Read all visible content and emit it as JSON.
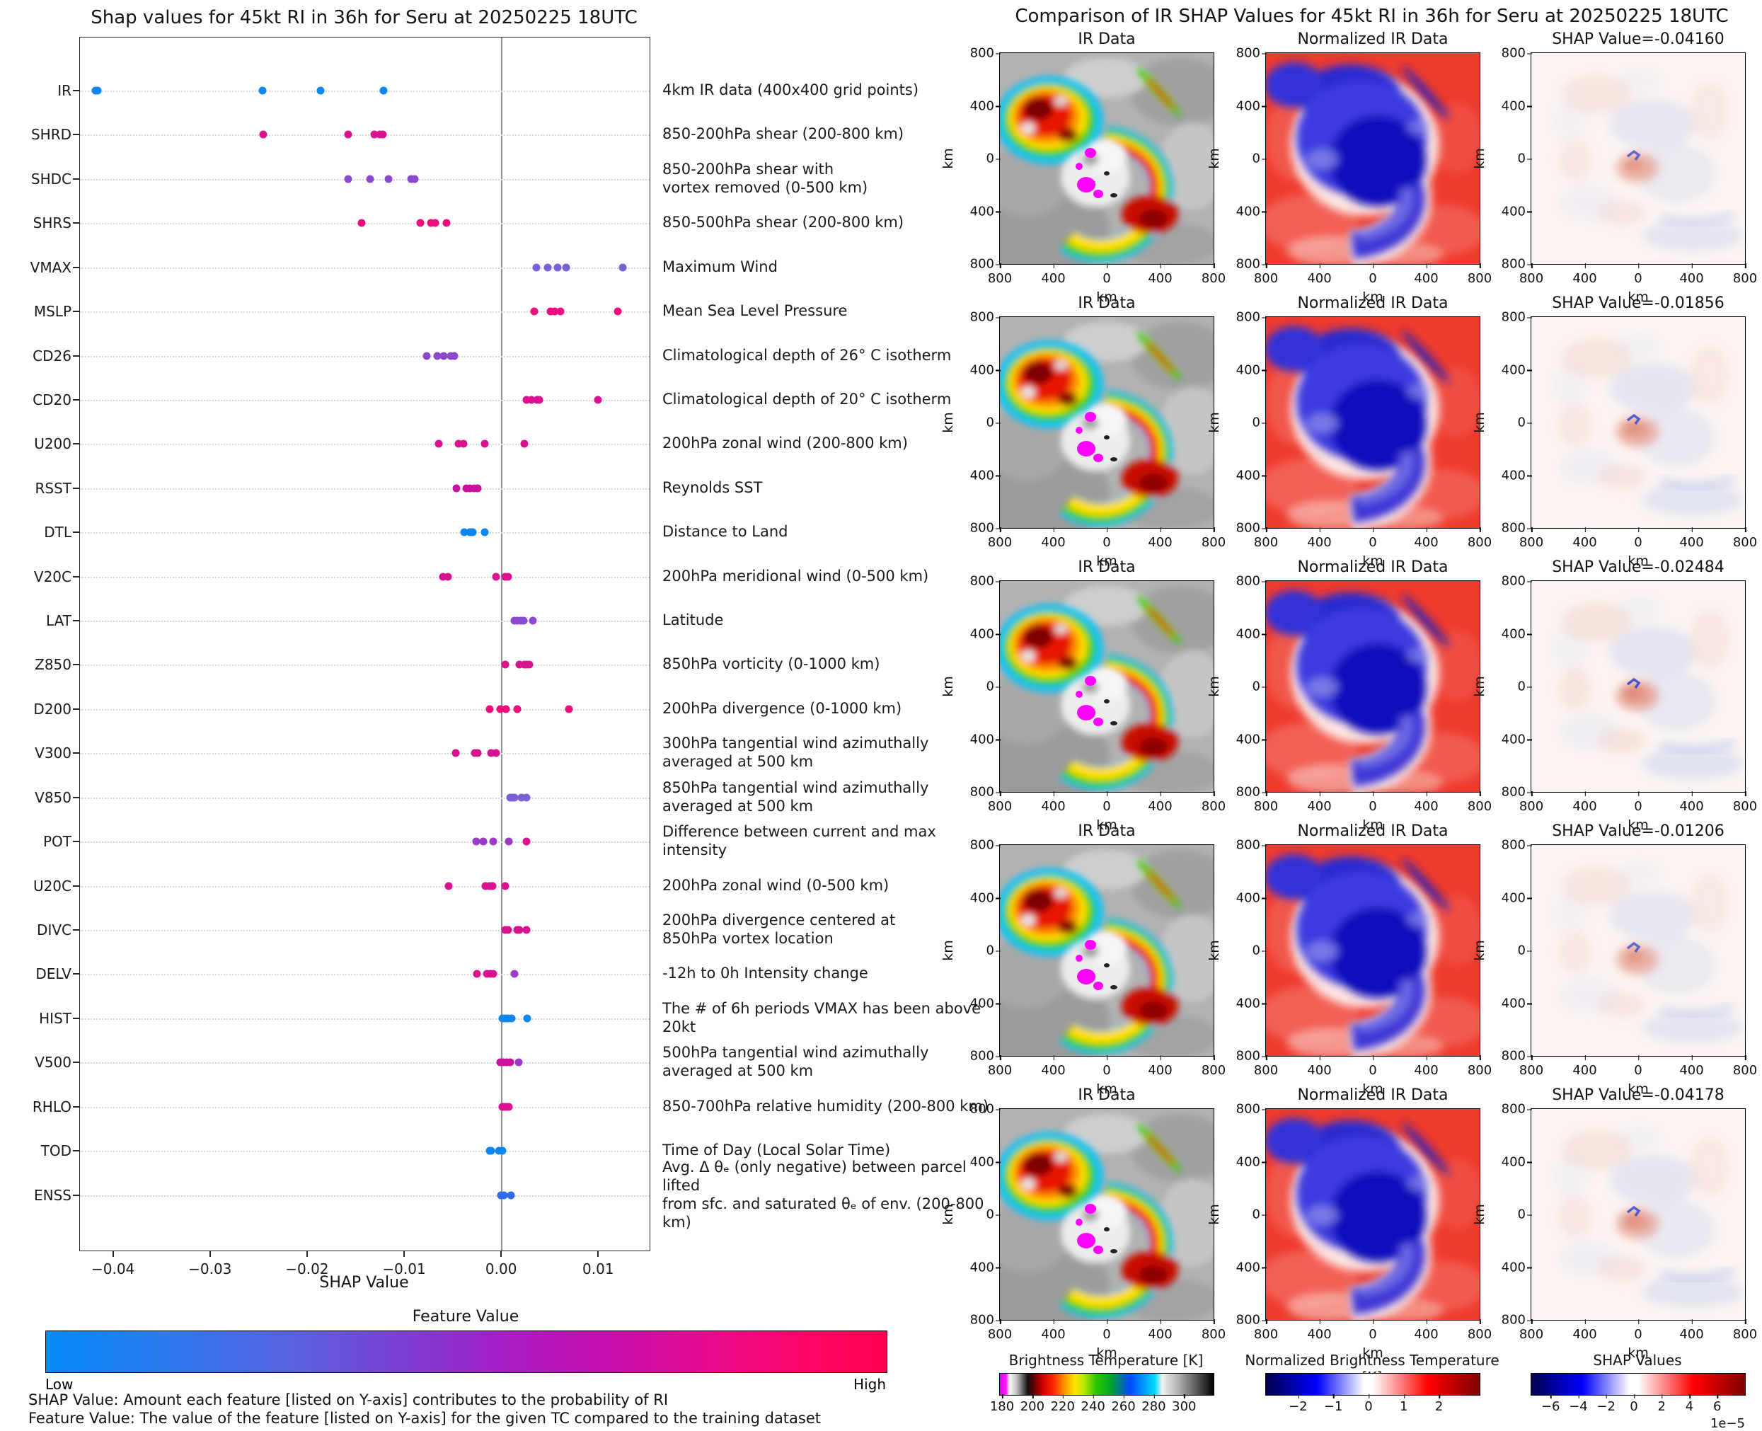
{
  "left_chart": {
    "title": "Shap values for 45kt RI in 36h for Seru at 20250225 18UTC",
    "xlabel": "SHAP Value",
    "colorbar": {
      "title": "Feature Value",
      "low_label": "Low",
      "high_label": "High",
      "low_color": "#058bf7",
      "high_color": "#ff0050"
    },
    "footnotes": [
      "SHAP Value: Amount each feature [listed on Y-axis] contributes to the probability of RI",
      "Feature Value: The value of the feature [listed on Y-axis] for the given TC compared to the training dataset"
    ]
  },
  "right_grid": {
    "title": "Comparison of IR SHAP Values for 45kt RI in 36h for Seru at 20250225 18UTC",
    "col_titles": [
      "IR Data",
      "Normalized IR Data"
    ],
    "rows": [
      {
        "shap_label": "SHAP Value=-0.04160"
      },
      {
        "shap_label": "SHAP Value=-0.01856"
      },
      {
        "shap_label": "SHAP Value=-0.02484"
      },
      {
        "shap_label": "SHAP Value=-0.01206"
      },
      {
        "shap_label": "SHAP Value=-0.04178"
      }
    ],
    "axis_ticks": [
      "800",
      "400",
      "0",
      "400",
      "800"
    ],
    "axis_unit": "km",
    "colorbars": [
      {
        "title": "Brightness Temperature [K]",
        "style": "ir",
        "ticks": [
          "180",
          "200",
          "220",
          "240",
          "260",
          "280",
          "300"
        ],
        "tick_pos": [
          1,
          15.2,
          29.4,
          43.6,
          57.8,
          72,
          86.2
        ],
        "exponent": ""
      },
      {
        "title": "Normalized Brightness Temperature [K]",
        "style": "seismic",
        "ticks": [
          "−2",
          "−1",
          "0",
          "1",
          "2"
        ],
        "tick_pos": [
          15,
          31.5,
          48,
          64.5,
          81
        ],
        "exponent": ""
      },
      {
        "title": "SHAP Values",
        "style": "seismic",
        "ticks": [
          "−6",
          "−4",
          "−2",
          "0",
          "2",
          "4",
          "6"
        ],
        "tick_pos": [
          9,
          22,
          35,
          48,
          61,
          74,
          87
        ],
        "exponent": "1e−5"
      }
    ]
  },
  "chart_data": {
    "type": "scatter",
    "title": "Shap values for 45kt RI in 36h for Seru at 20250225 18UTC",
    "xlabel": "SHAP Value",
    "ylabel": "",
    "xlim": [
      -0.0434,
      0.0153
    ],
    "grid": "dotted horizontal rows",
    "legend_position": "bottom colorbar (Feature Value: Low blue to High pink)",
    "x_tick_values": [
      -0.04,
      -0.03,
      -0.02,
      -0.01,
      0.0,
      0.01
    ],
    "x_tick_labels": [
      "−0.04",
      "−0.03",
      "−0.02",
      "−0.01",
      "0.00",
      "0.01"
    ],
    "ir_member_shap_values": [
      -0.0416,
      -0.01856,
      -0.02484,
      -0.01206,
      -0.04178
    ],
    "features": [
      {
        "name": "IR",
        "desc": [
          "4km IR data (400x400 grid points)"
        ],
        "color": "#0d86f0",
        "shap_values": [
          -0.0418,
          -0.0416,
          -0.0246,
          -0.0186,
          -0.0121
        ]
      },
      {
        "name": "SHRD",
        "desc": [
          "850-200hPa shear (200-800 km)"
        ],
        "color": "#d9128f",
        "shap_values": [
          -0.0245,
          -0.0158,
          -0.0131,
          -0.0125,
          -0.0122
        ]
      },
      {
        "name": "SHDC",
        "desc": [
          "850-200hPa shear with",
          "vortex removed (0-500 km)"
        ],
        "color": "#8a49cf",
        "shap_values": [
          -0.0158,
          -0.0135,
          -0.0116,
          -0.0093,
          -0.0089
        ]
      },
      {
        "name": "SHRS",
        "desc": [
          "850-500hPa shear (200-800 km)"
        ],
        "color": "#ee0d7c",
        "shap_values": [
          -0.0144,
          -0.0083,
          -0.0072,
          -0.0068,
          -0.0056
        ]
      },
      {
        "name": "VMAX",
        "desc": [
          "Maximum Wind"
        ],
        "color": "#7b5fd6",
        "shap_values": [
          0.0036,
          0.0048,
          0.0058,
          0.0067,
          0.0125
        ]
      },
      {
        "name": "MSLP",
        "desc": [
          "Mean Sea Level Pressure"
        ],
        "color": "#ee0d7c",
        "shap_values": [
          0.0034,
          0.0051,
          0.0055,
          0.0061,
          0.012
        ]
      },
      {
        "name": "CD26",
        "desc": [
          "Climatological depth of 26° C isotherm"
        ],
        "color": "#8a49cf",
        "shap_values": [
          -0.0077,
          -0.0066,
          -0.0059,
          -0.0052,
          -0.0048
        ]
      },
      {
        "name": "CD20",
        "desc": [
          "Climatological depth of 20° C isotherm"
        ],
        "color": "#d9128f",
        "shap_values": [
          0.0026,
          0.0031,
          0.0037,
          0.0039,
          0.01
        ]
      },
      {
        "name": "U200",
        "desc": [
          "200hPa zonal wind (200-800 km)"
        ],
        "color": "#d9128f",
        "shap_values": [
          -0.0064,
          -0.0044,
          -0.0039,
          -0.0017,
          0.0024
        ]
      },
      {
        "name": "RSST",
        "desc": [
          "Reynolds SST"
        ],
        "color": "#c9139c",
        "shap_values": [
          -0.0046,
          -0.0036,
          -0.0032,
          -0.0028,
          -0.0024
        ]
      },
      {
        "name": "DTL",
        "desc": [
          "Distance to Land"
        ],
        "color": "#0d86f0",
        "shap_values": [
          -0.0038,
          -0.0032,
          -0.003,
          -0.0029,
          -0.0017
        ]
      },
      {
        "name": "V20C",
        "desc": [
          "200hPa meridional wind (0-500 km)"
        ],
        "color": "#d9128f",
        "shap_values": [
          -0.006,
          -0.0055,
          -0.0005,
          0.0004,
          0.0007
        ]
      },
      {
        "name": "LAT",
        "desc": [
          "Latitude"
        ],
        "color": "#8a49cf",
        "shap_values": [
          0.0014,
          0.0017,
          0.002,
          0.0023,
          0.0033
        ]
      },
      {
        "name": "Z850",
        "desc": [
          "850hPa vorticity (0-1000 km)"
        ],
        "color": "#d9128f",
        "shap_values": [
          0.0004,
          0.0019,
          0.0024,
          0.0026,
          0.0029
        ]
      },
      {
        "name": "D200",
        "desc": [
          "200hPa divergence (0-1000 km)"
        ],
        "color": "#ee0d7c",
        "shap_values": [
          -0.0012,
          -0.0001,
          0.0005,
          0.0017,
          0.007
        ]
      },
      {
        "name": "V300",
        "desc": [
          "300hPa tangential wind azimuthally",
          "averaged at 500 km"
        ],
        "color": "#d9128f",
        "shap_values": [
          -0.0047,
          -0.0027,
          -0.0024,
          -0.001,
          -0.0005
        ]
      },
      {
        "name": "V850",
        "desc": [
          "850hPa tangential wind azimuthally",
          "averaged at 500 km"
        ],
        "color": "#7b5fd6",
        "shap_values": [
          0.0009,
          0.0012,
          0.0014,
          0.0021,
          0.0026
        ]
      },
      {
        "name": "POT",
        "desc": [
          "Difference between current and max intensity"
        ],
        "color": "#9a3bc4",
        "dot_colors": [
          "#9a3bc4",
          "#9a3bc4",
          "#9a3bc4",
          "#9a3bc4",
          "#d9128f"
        ],
        "shap_values": [
          -0.0026,
          -0.0018,
          -0.0008,
          0.0008,
          0.0026
        ]
      },
      {
        "name": "U20C",
        "desc": [
          "200hPa zonal wind (0-500 km)"
        ],
        "color": "#d9128f",
        "shap_values": [
          -0.0054,
          -0.0016,
          -0.0012,
          -0.0009,
          0.0004
        ]
      },
      {
        "name": "DIVC",
        "desc": [
          "200hPa divergence centered at",
          "850hPa vortex location"
        ],
        "color": "#d9128f",
        "shap_values": [
          0.0004,
          0.0007,
          0.0017,
          0.0019,
          0.0026
        ]
      },
      {
        "name": "DELV",
        "desc": [
          "-12h to 0h Intensity change"
        ],
        "color": "#d9128f",
        "dot_colors": [
          "#d9128f",
          "#d9128f",
          "#d9128f",
          "#d9128f",
          "#9a3bc4"
        ],
        "shap_values": [
          -0.0025,
          -0.0015,
          -0.0011,
          -0.0008,
          0.0014
        ]
      },
      {
        "name": "HIST",
        "desc": [
          "The # of 6h periods VMAX has been above 20kt"
        ],
        "color": "#0d86f0",
        "shap_values": [
          0.0001,
          0.0004,
          0.0007,
          0.0011,
          0.0027
        ]
      },
      {
        "name": "V500",
        "desc": [
          "500hPa tangential wind azimuthally",
          "averaged at 500 km"
        ],
        "color": "#c9139c",
        "dot_colors": [
          "#c9139c",
          "#c9139c",
          "#c9139c",
          "#c9139c",
          "#9a3bc4"
        ],
        "shap_values": [
          -0.0001,
          0.0002,
          0.0006,
          0.0009,
          0.0018
        ]
      },
      {
        "name": "RHLO",
        "desc": [
          "850-700hPa relative humidity (200-800 km)"
        ],
        "color": "#d9128f",
        "shap_values": [
          0.0001,
          0.0003,
          0.0005,
          0.0008
        ]
      },
      {
        "name": "TOD",
        "desc": [
          "Time of Day (Local Solar Time)"
        ],
        "color": "#0d86f0",
        "shap_values": [
          -0.0012,
          -0.001,
          -0.0002,
          0.0001
        ]
      },
      {
        "name": "ENSS",
        "desc": [
          "Avg. Δ θₑ (only negative) between parcel lifted",
          "from sfc. and saturated θₑ of env. (200-800 km)"
        ],
        "color": "#2f6ae8",
        "shap_values": [
          0.0,
          0.0003,
          0.001
        ]
      }
    ]
  }
}
